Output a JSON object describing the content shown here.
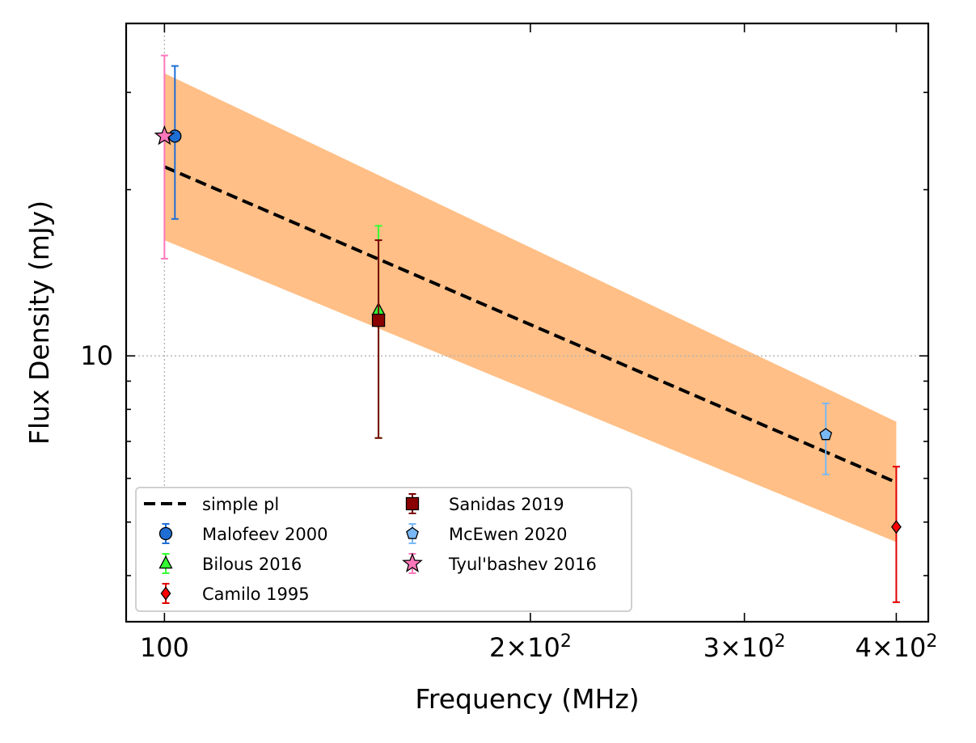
{
  "chart_data": {
    "type": "scatter",
    "title": "",
    "xlabel": "Frequency (MHz)",
    "ylabel": "Flux Density (mJy)",
    "xscale": "log",
    "yscale": "log",
    "xlim": [
      93,
      425
    ],
    "ylim": [
      3.3,
      40
    ],
    "grid": "dotted gridlines at x=100 and y=10",
    "x_ticks": [
      {
        "value": 100,
        "label": "100",
        "sup": ""
      },
      {
        "value": 200,
        "label": "2×10",
        "sup": "2"
      },
      {
        "value": 300,
        "label": "3×10",
        "sup": "2"
      },
      {
        "value": 400,
        "label": "4×10",
        "sup": "2"
      }
    ],
    "y_ticks": [
      {
        "value": 10,
        "label": "10"
      }
    ],
    "fit": {
      "name": "simple pl",
      "color": "#000000",
      "style": "dashed",
      "x": [
        100,
        400
      ],
      "y": [
        22.0,
        5.9
      ],
      "band_color": "#ffbf86",
      "band_lower": [
        16.2,
        4.6
      ],
      "band_upper": [
        32.5,
        7.6
      ]
    },
    "series": [
      {
        "name": "Malofeev 2000",
        "marker": "circle",
        "color": "#1f6ed4",
        "err_color": "#1f6ed4",
        "points": [
          {
            "x": 102,
            "y": 25.0,
            "ylo": 17.7,
            "yhi": 33.5
          }
        ]
      },
      {
        "name": "Bilous 2016",
        "marker": "triangle",
        "color": "#33ff33",
        "err_color": "#33ff33",
        "points": [
          {
            "x": 150,
            "y": 12.1,
            "ylo": 7.1,
            "yhi": 17.2
          }
        ]
      },
      {
        "name": "Camilo 1995",
        "marker": "diamond",
        "color": "#ff0000",
        "err_color": "#e00000",
        "points": [
          {
            "x": 400,
            "y": 4.9,
            "ylo": 3.58,
            "yhi": 6.3
          }
        ]
      },
      {
        "name": "Sanidas 2019",
        "marker": "square",
        "color": "#8b0000",
        "err_color": "#7a0000",
        "points": [
          {
            "x": 150,
            "y": 11.6,
            "ylo": 7.1,
            "yhi": 16.2
          }
        ]
      },
      {
        "name": "McEwen 2020",
        "marker": "pentagon",
        "color": "#7ab8f5",
        "err_color": "#7ab8f5",
        "points": [
          {
            "x": 350,
            "y": 7.2,
            "ylo": 6.1,
            "yhi": 8.2
          }
        ]
      },
      {
        "name": "Tyul'bashev 2016",
        "marker": "star",
        "color": "#ff77bb",
        "err_color": "#ff77bb",
        "points": [
          {
            "x": 100,
            "y": 25.0,
            "ylo": 15.0,
            "yhi": 35.0
          }
        ]
      }
    ],
    "legend": {
      "placement": "lower-left",
      "columns": [
        [
          "simple pl",
          "Malofeev 2000",
          "Bilous 2016",
          "Camilo 1995"
        ],
        [
          "Sanidas 2019",
          "McEwen 2020",
          "Tyul'bashev 2016"
        ]
      ]
    }
  }
}
